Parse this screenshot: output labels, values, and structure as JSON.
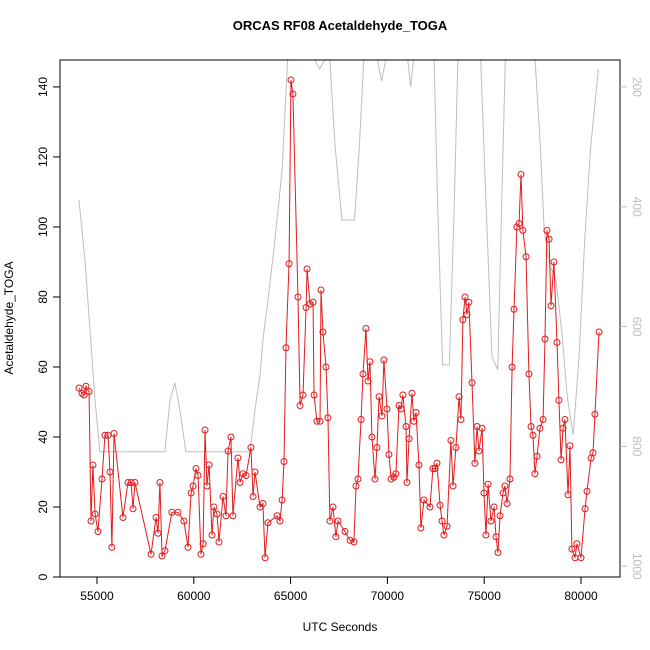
{
  "chart_data": {
    "type": "line",
    "title": "ORCAS RF08 Acetaldehyde_TOGA",
    "xlabel": "UTC Seconds",
    "ylabel": "Acetaldehyde_TOGA",
    "xlim": [
      53089,
      82014
    ],
    "ylim": [
      0,
      147.7
    ],
    "y2lim": [
      1018,
      155
    ],
    "xticks": [
      55000,
      60000,
      65000,
      70000,
      75000,
      80000
    ],
    "yticks": [
      0,
      20,
      40,
      60,
      80,
      100,
      120,
      140
    ],
    "y2ticks": [
      200,
      400,
      600,
      800,
      1000
    ],
    "series": [
      {
        "color": "#e31a1c",
        "markers": true,
        "x": [
          54070,
          54225,
          54330,
          54430,
          54590,
          54690,
          54790,
          54900,
          55050,
          55260,
          55410,
          55570,
          55670,
          55770,
          55880,
          56340,
          56600,
          56760,
          56860,
          56960,
          57790,
          58050,
          58150,
          58250,
          58360,
          58510,
          58870,
          59180,
          59490,
          59700,
          59860,
          59960,
          60110,
          60220,
          60370,
          60480,
          60580,
          60680,
          60790,
          60940,
          61040,
          61200,
          61300,
          61510,
          61660,
          61770,
          61920,
          62020,
          62280,
          62390,
          62540,
          62700,
          62950,
          63060,
          63160,
          63420,
          63570,
          63680,
          63830,
          64300,
          64450,
          64560,
          64660,
          64760,
          64920,
          65020,
          65120,
          65380,
          65490,
          65640,
          65800,
          65850,
          66000,
          66160,
          66210,
          66360,
          66520,
          66570,
          66670,
          66830,
          66930,
          67030,
          67190,
          67340,
          67450,
          67810,
          68070,
          68270,
          68380,
          68480,
          68640,
          68740,
          68890,
          69000,
          69100,
          69200,
          69360,
          69460,
          69570,
          69720,
          69820,
          69980,
          70080,
          70190,
          70340,
          70440,
          70600,
          70700,
          70800,
          70960,
          71010,
          71120,
          71270,
          71370,
          71480,
          71630,
          71730,
          71890,
          72200,
          72350,
          72460,
          72560,
          72720,
          72820,
          72920,
          73080,
          73280,
          73390,
          73540,
          73700,
          73800,
          73900,
          74010,
          74110,
          74210,
          74370,
          74520,
          74630,
          74730,
          74890,
          74990,
          75090,
          75200,
          75350,
          75510,
          75610,
          75710,
          75820,
          75970,
          76070,
          76180,
          76330,
          76440,
          76540,
          76690,
          76800,
          76900,
          77000,
          77160,
          77310,
          77420,
          77520,
          77620,
          77730,
          77880,
          78040,
          78140,
          78240,
          78350,
          78450,
          78600,
          78760,
          78860,
          78970,
          79070,
          79170,
          79330,
          79430,
          79530,
          79690,
          79790,
          80000,
          80210,
          80310,
          80520,
          80620,
          80720,
          80930
        ],
        "values": [
          54,
          52.5,
          52,
          54.5,
          53,
          16,
          32,
          18,
          13,
          28,
          40.5,
          40.5,
          30,
          8.5,
          41,
          17,
          27,
          27,
          19.5,
          27,
          6.5,
          17,
          12.5,
          27,
          6,
          7.5,
          18.5,
          18.5,
          16,
          8.5,
          24,
          26,
          31,
          29,
          6.5,
          9.5,
          42,
          26,
          32,
          12,
          20,
          18,
          10,
          23,
          17.5,
          36,
          40,
          17.5,
          34,
          27,
          29.5,
          29,
          37,
          23,
          30,
          20,
          21,
          5.5,
          15.5,
          17.5,
          16,
          22,
          33,
          65.5,
          89.5,
          142,
          138,
          80,
          49,
          52,
          77,
          88,
          78,
          78.5,
          52,
          44.5,
          44.5,
          82,
          70,
          60,
          45.5,
          16,
          20,
          11.5,
          16,
          13,
          10.5,
          10,
          26,
          28,
          45,
          58,
          71,
          56,
          61.5,
          40,
          28,
          37,
          51.5,
          46,
          62,
          48,
          35,
          28,
          28.5,
          29.5,
          49,
          48,
          52,
          43,
          27,
          39.5,
          52.5,
          44.5,
          47,
          32,
          14,
          22,
          20,
          31,
          31,
          32.5,
          20.5,
          16,
          12,
          14.5,
          39,
          26,
          37,
          51.5,
          45,
          73.5,
          80,
          75,
          78.5,
          55.5,
          32.5,
          43,
          36,
          42.5,
          24,
          12,
          26.5,
          16,
          20,
          11.5,
          7,
          17.5,
          24,
          26,
          21,
          28,
          60,
          76.5,
          100,
          101,
          115,
          99,
          91.5,
          58,
          43,
          40.5,
          29.5,
          34.5,
          42.5,
          45,
          68,
          99,
          96.5,
          77.5,
          90,
          67,
          50.5,
          33.5,
          42.5,
          45,
          23.5,
          37.5,
          8,
          5.5,
          9.5,
          5.5,
          19.5,
          24.5,
          34,
          35.5,
          46.5,
          70
        ]
      },
      {
        "color": "#bebebe",
        "axis": "y2",
        "markers": false,
        "x": [
          54070,
          54380,
          54640,
          54900,
          55150,
          58510,
          58770,
          59020,
          59280,
          59590,
          62900,
          63160,
          63420,
          63570,
          63830,
          64190,
          64560,
          64870,
          66000,
          66500,
          67000,
          67300,
          67650,
          68300,
          68550,
          68800,
          69400,
          69700,
          70000,
          71000,
          71200,
          71400,
          72400,
          72600,
          72850,
          73200,
          73450,
          73650,
          74800,
          75100,
          75400,
          75700,
          75900,
          76100,
          77600,
          77900,
          78100,
          78400,
          78700,
          79000,
          79300,
          79600,
          79900,
          80200,
          80500,
          80900
        ],
        "values": [
          389,
          489,
          606,
          723,
          809,
          809,
          723,
          694,
          739,
          809,
          809,
          739,
          681,
          622,
          556,
          456,
          339,
          140,
          140,
          170,
          140,
          300,
          422,
          422,
          300,
          140,
          140,
          190,
          140,
          140,
          200,
          140,
          140,
          400,
          664,
          664,
          400,
          140,
          140,
          400,
          650,
          672,
          400,
          140,
          140,
          300,
          439,
          500,
          520,
          606,
          720,
          780,
          650,
          450,
          300,
          170
        ]
      }
    ]
  }
}
